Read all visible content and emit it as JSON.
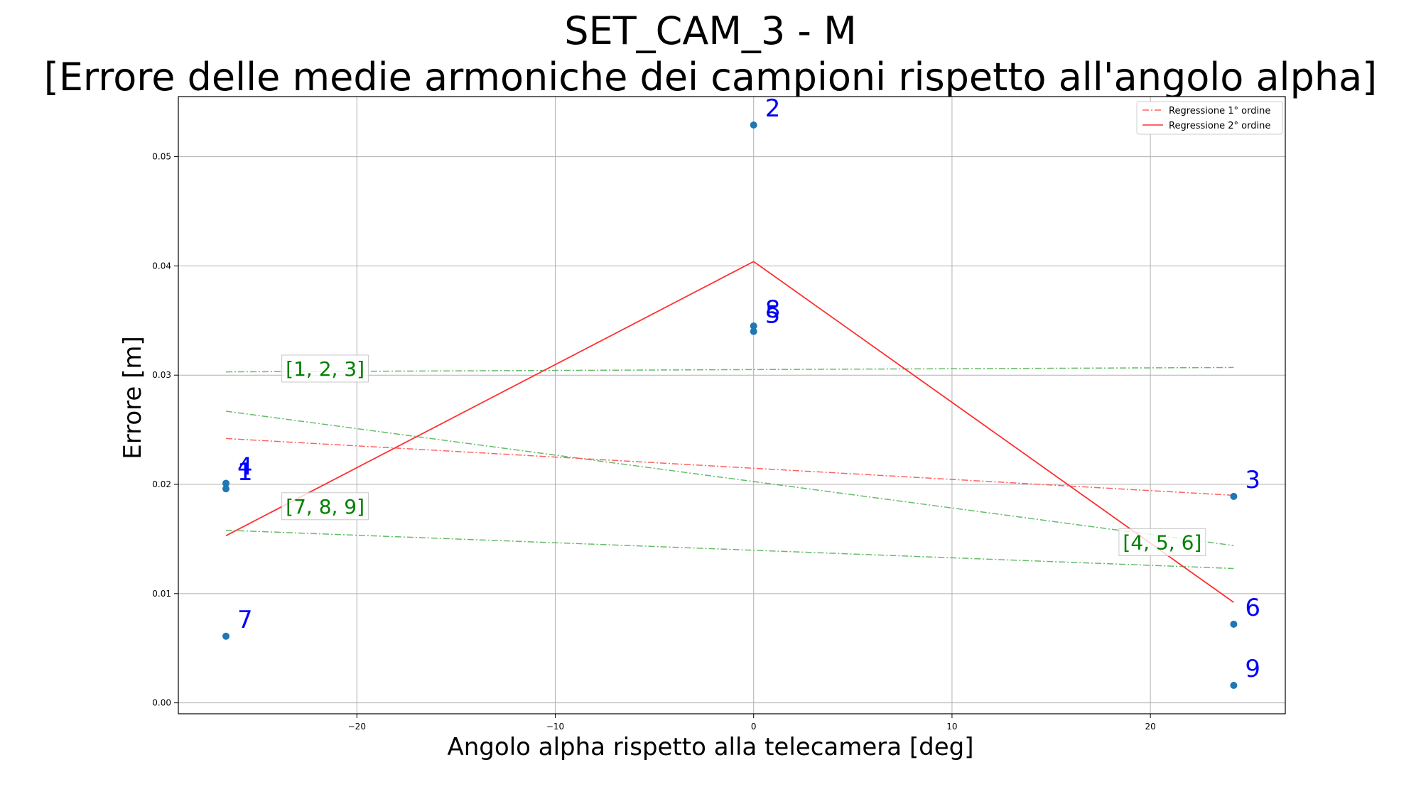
{
  "chart_data": {
    "type": "scatter",
    "title_line1": "SET_CAM_3 - M",
    "title_line2": "[Errore delle medie armoniche dei campioni rispetto all'angolo alpha]",
    "xlabel": "Angolo alpha rispetto alla telecamera [deg]",
    "ylabel": "Errore [m]",
    "xlim": [
      -29,
      26.8
    ],
    "ylim": [
      -0.001,
      0.0555
    ],
    "xticks": [
      -20,
      -10,
      0,
      10,
      20
    ],
    "xtick_labels": [
      "−20",
      "−10",
      "0",
      "10",
      "20"
    ],
    "yticks": [
      0.0,
      0.01,
      0.02,
      0.03,
      0.04,
      0.05
    ],
    "ytick_labels": [
      "0.00",
      "0.01",
      "0.02",
      "0.03",
      "0.04",
      "0.05"
    ],
    "grid": true,
    "legend_position": "top-right",
    "legend": [
      {
        "label": "Regressione 1° ordine",
        "style": "dashdot",
        "color": "#ff6060"
      },
      {
        "label": "Regressione 2° ordine",
        "style": "solid",
        "color": "#ff3030"
      }
    ],
    "point_color": "#1f77b4",
    "label_color": "#0000ff",
    "group_color": "#008000",
    "points": [
      {
        "label": "1",
        "x": -26.6,
        "y": 0.0196
      },
      {
        "label": "2",
        "x": 0.0,
        "y": 0.0529
      },
      {
        "label": "3",
        "x": 24.2,
        "y": 0.0189
      },
      {
        "label": "4",
        "x": -26.6,
        "y": 0.0201
      },
      {
        "label": "5",
        "x": 0.0,
        "y": 0.034
      },
      {
        "label": "6",
        "x": 24.2,
        "y": 0.0072
      },
      {
        "label": "7",
        "x": -26.6,
        "y": 0.0061
      },
      {
        "label": "8",
        "x": 0.0,
        "y": 0.0345
      },
      {
        "label": "9",
        "x": 24.2,
        "y": 0.0016
      }
    ],
    "first_order_regression": {
      "x": [
        -26.6,
        24.2
      ],
      "y": [
        0.0242,
        0.019
      ]
    },
    "second_order_regression": {
      "x": [
        -26.6,
        0.0,
        24.2
      ],
      "y": [
        0.0153,
        0.0404,
        0.0092
      ]
    },
    "group_regressions": [
      {
        "label": "[1, 2, 3]",
        "x": [
          -26.6,
          24.2
        ],
        "y": [
          0.0303,
          0.0307
        ],
        "label_x": -21.6,
        "label_y": 0.0306
      },
      {
        "label": "[4, 5, 6]",
        "x": [
          -26.6,
          24.2
        ],
        "y": [
          0.0267,
          0.0144
        ],
        "label_x": 20.6,
        "label_y": 0.0147
      },
      {
        "label": "[7, 8, 9]",
        "x": [
          -26.6,
          24.2
        ],
        "y": [
          0.0158,
          0.0123
        ],
        "label_x": -21.6,
        "label_y": 0.018
      }
    ]
  }
}
